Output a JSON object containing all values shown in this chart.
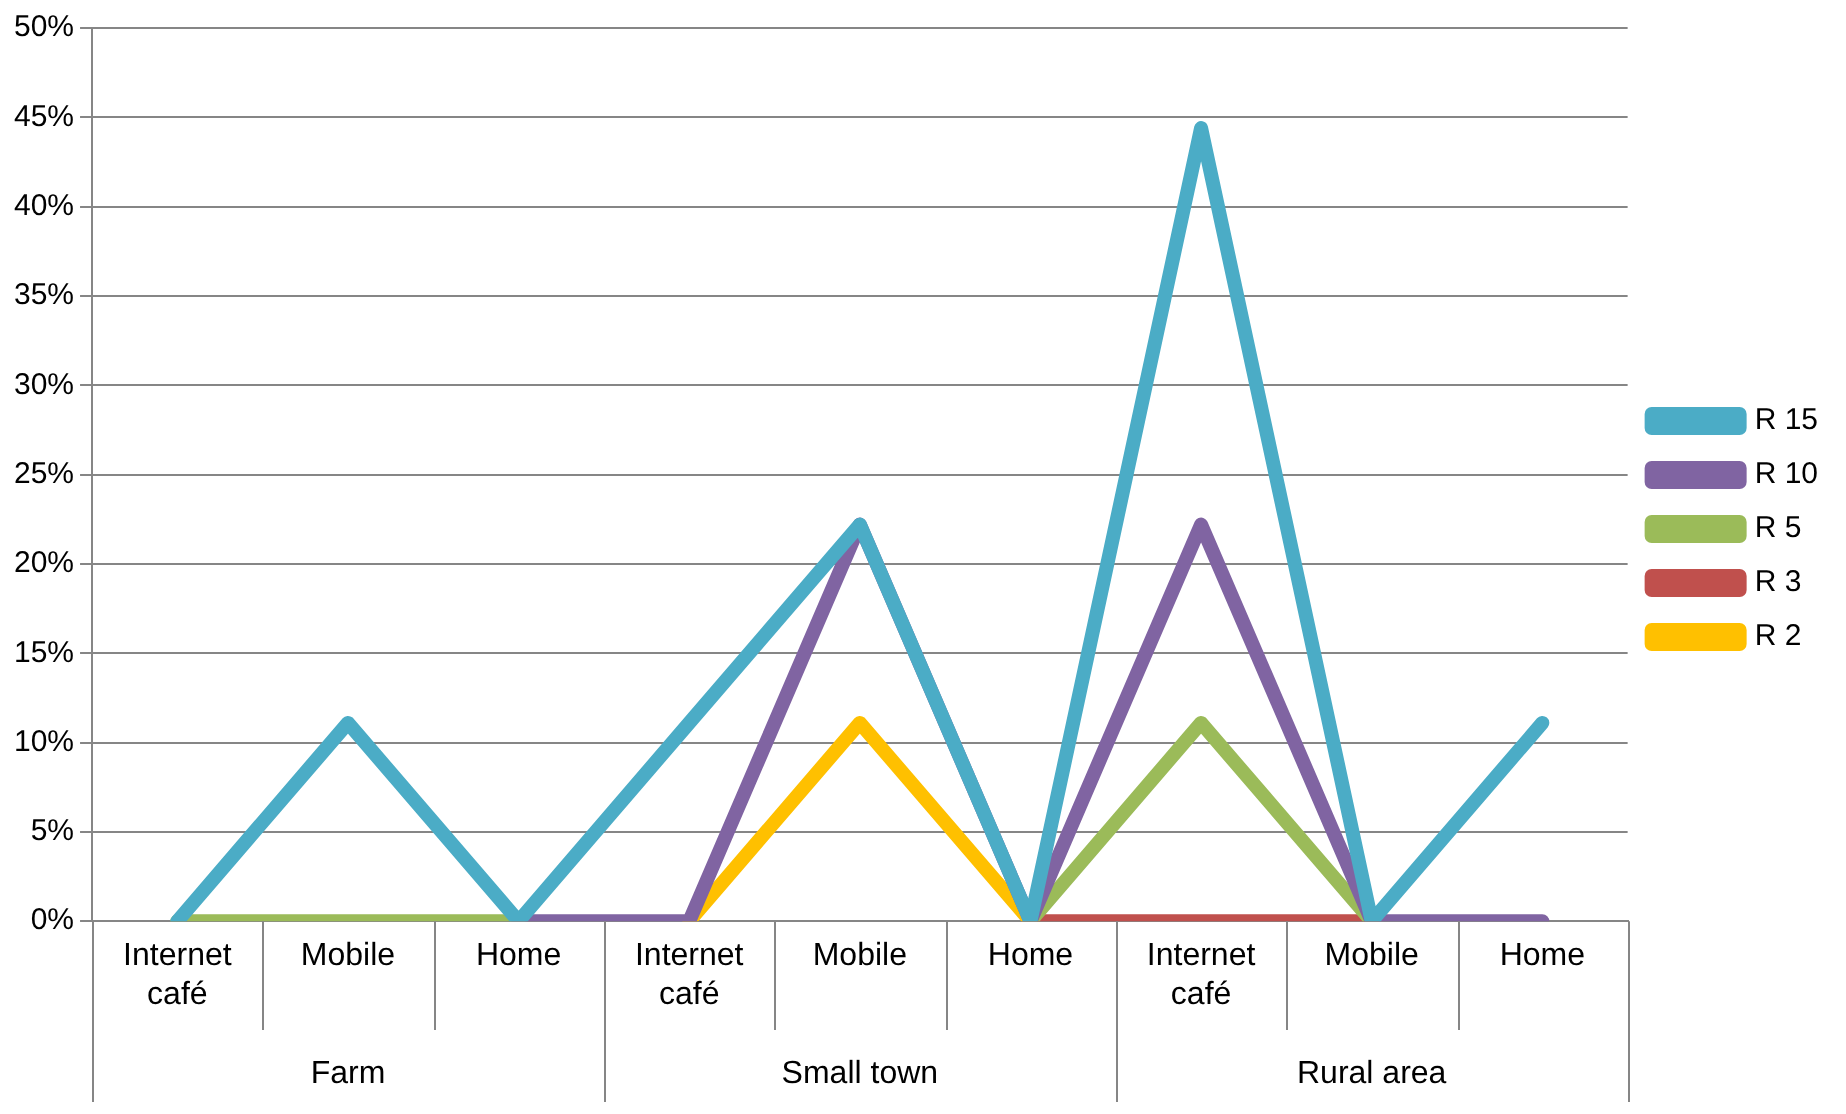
{
  "chart_data": {
    "type": "line",
    "categories": [
      "Internet café",
      "Mobile",
      "Home",
      "Internet café",
      "Mobile",
      "Home",
      "Internet café",
      "Mobile",
      "Home"
    ],
    "annotations": [
      "Farm",
      "Small town",
      "Rural area"
    ],
    "series": [
      {
        "name": "R 15",
        "color": "#4bacc6",
        "values": [
          0,
          11.1,
          0,
          11.1,
          22.2,
          0,
          44.4,
          0,
          11.1
        ]
      },
      {
        "name": "R 10",
        "color": "#8064a2",
        "values": [
          null,
          null,
          0,
          0,
          22.2,
          0,
          22.2,
          0,
          0
        ]
      },
      {
        "name": "R 5",
        "color": "#9bbb59",
        "values": [
          0,
          0,
          0,
          null,
          null,
          0,
          11.1,
          0,
          null
        ]
      },
      {
        "name": "R 3",
        "color": "#c0504d",
        "values": [
          null,
          null,
          null,
          null,
          null,
          0,
          0,
          0,
          null
        ]
      },
      {
        "name": "R 2",
        "color": "#ffc000",
        "values": [
          null,
          null,
          null,
          0,
          11.1,
          0,
          null,
          null,
          null
        ]
      }
    ],
    "ylim": [
      0,
      50
    ],
    "yticks": [
      {
        "value": 0,
        "label": "0%"
      },
      {
        "value": 5,
        "label": "5%"
      },
      {
        "value": 10,
        "label": "10%"
      },
      {
        "value": 15,
        "label": "15%"
      },
      {
        "value": 20,
        "label": "20%"
      },
      {
        "value": 25,
        "label": "25%"
      },
      {
        "value": 30,
        "label": "30%"
      },
      {
        "value": 35,
        "label": "35%"
      },
      {
        "value": 40,
        "label": "40%"
      },
      {
        "value": 45,
        "label": "45%"
      },
      {
        "value": 50,
        "label": "50%"
      }
    ],
    "grid": "y",
    "legend": "right",
    "marker": "none",
    "line_style": "solid"
  }
}
